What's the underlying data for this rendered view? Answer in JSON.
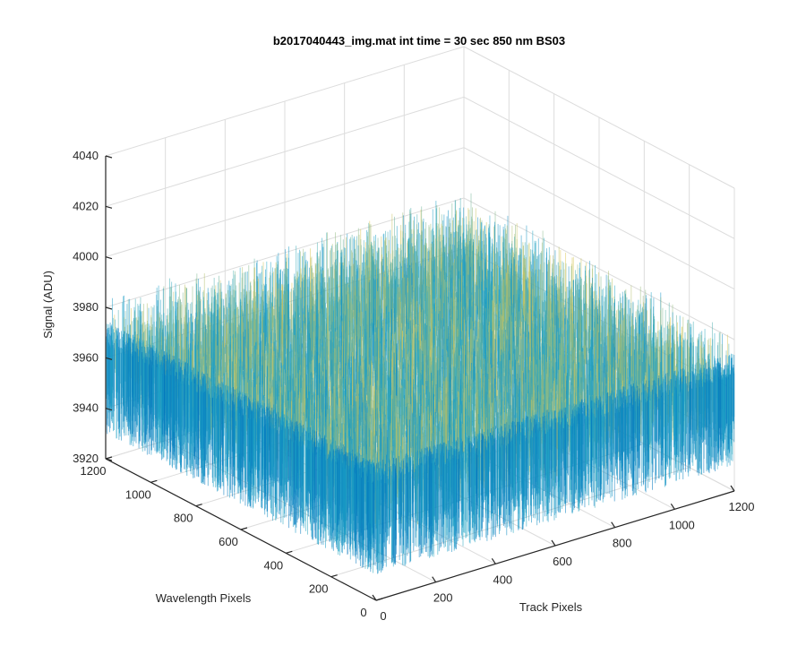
{
  "chart_data": {
    "type": "surface",
    "title": "b2017040443_img.mat int time = 30 sec  850 nm BS03",
    "xlabel": "Track Pixels",
    "ylabel": "Wavelength Pixels",
    "zlabel": "Signal (ADU)",
    "xlim": [
      0,
      1200
    ],
    "ylim": [
      0,
      1200
    ],
    "zlim": [
      3920,
      4040
    ],
    "x_ticks": [
      "0",
      "200",
      "400",
      "600",
      "800",
      "1000",
      "1200"
    ],
    "y_ticks": [
      "0",
      "200",
      "400",
      "600",
      "800",
      "1000",
      "1200"
    ],
    "z_ticks": [
      "3920",
      "3940",
      "3960",
      "3980",
      "4000",
      "4020",
      "4040"
    ],
    "surface": {
      "mean_signal": 3960,
      "signal_range": [
        3935,
        4025
      ],
      "colormap": "parula"
    },
    "grid": true
  },
  "colors": {
    "low": "#0072bd",
    "mid": "#1fa6c8",
    "high": "#e2c84e"
  }
}
